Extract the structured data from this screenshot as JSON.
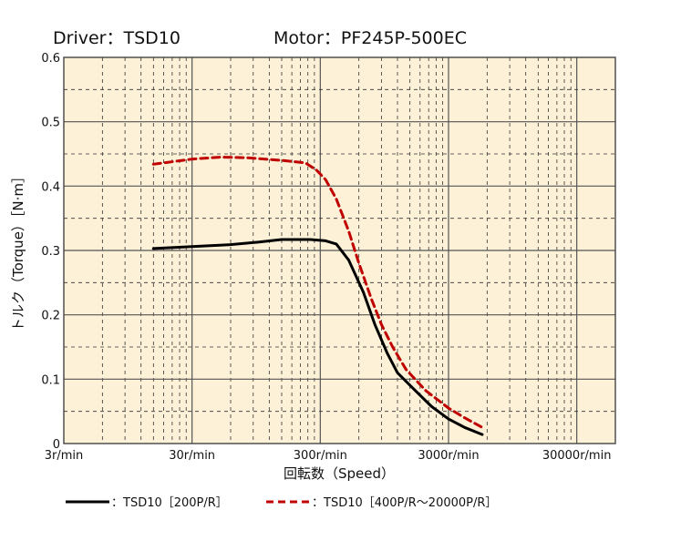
{
  "header": {
    "driver": "Driver：TSD10",
    "motor": "Motor：PF245P-500EC"
  },
  "chart_data": {
    "type": "line",
    "xscale": "log",
    "xlim": [
      3,
      60000
    ],
    "ylim": [
      0,
      0.6
    ],
    "xlabel": "回転数（Speed）",
    "ylabel": "トルク（Torque）［N·m］",
    "x_ticks": [
      3,
      30,
      300,
      3000,
      30000
    ],
    "x_tick_labels": [
      "3r/min",
      "30r/min",
      "300r/min",
      "3000r/min",
      "30000r/min"
    ],
    "y_ticks": [
      0,
      0.1,
      0.2,
      0.3,
      0.4,
      0.5,
      0.6
    ],
    "y_tick_labels": [
      "0",
      "0.1",
      "0.2",
      "0.3",
      "0.4",
      "0.5",
      "0.6"
    ],
    "grid": true,
    "legend_position": "bottom",
    "series": [
      {
        "name": "：TSD10［200P/R］",
        "color": "#000000",
        "style": "solid",
        "points": [
          [
            15,
            0.303
          ],
          [
            30,
            0.306
          ],
          [
            60,
            0.309
          ],
          [
            100,
            0.313
          ],
          [
            150,
            0.317
          ],
          [
            250,
            0.317
          ],
          [
            330,
            0.315
          ],
          [
            400,
            0.31
          ],
          [
            500,
            0.285
          ],
          [
            650,
            0.235
          ],
          [
            800,
            0.185
          ],
          [
            1000,
            0.14
          ],
          [
            1200,
            0.11
          ],
          [
            1600,
            0.085
          ],
          [
            2200,
            0.058
          ],
          [
            3000,
            0.038
          ],
          [
            4000,
            0.025
          ],
          [
            5500,
            0.014
          ]
        ]
      },
      {
        "name": "：TSD10［400P/R～20000P/R］",
        "color": "#c00000",
        "style": "dashed",
        "points": [
          [
            15,
            0.434
          ],
          [
            30,
            0.442
          ],
          [
            50,
            0.445
          ],
          [
            80,
            0.444
          ],
          [
            150,
            0.44
          ],
          [
            230,
            0.436
          ],
          [
            280,
            0.425
          ],
          [
            330,
            0.41
          ],
          [
            400,
            0.38
          ],
          [
            500,
            0.33
          ],
          [
            600,
            0.28
          ],
          [
            750,
            0.225
          ],
          [
            900,
            0.185
          ],
          [
            1100,
            0.15
          ],
          [
            1400,
            0.115
          ],
          [
            2000,
            0.082
          ],
          [
            3000,
            0.055
          ],
          [
            4000,
            0.04
          ],
          [
            5500,
            0.025
          ]
        ]
      }
    ]
  }
}
